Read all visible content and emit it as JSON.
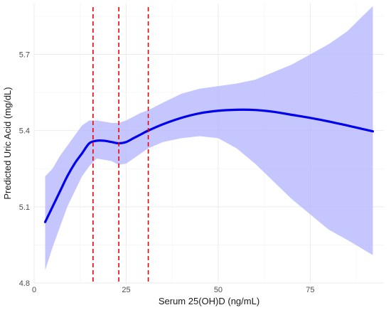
{
  "chart_data": {
    "type": "line",
    "title": "",
    "xlabel": "Serum 25(OH)D (ng/mL)",
    "ylabel": "Predicted Uric Acid (mg/dL)",
    "xlim": [
      0,
      95
    ],
    "ylim": [
      4.8,
      5.9
    ],
    "x_ticks": [
      0,
      25,
      50,
      75
    ],
    "x_tick_labels": [
      "0",
      "25",
      "50",
      "75"
    ],
    "y_ticks": [
      4.8,
      5.1,
      5.4,
      5.7
    ],
    "y_tick_labels": [
      "4.8",
      "5.1",
      "5.4",
      "5.7"
    ],
    "grid": true,
    "series": [
      {
        "type": "line",
        "color": "#0000ee",
        "x": [
          3,
          5,
          7,
          9,
          11,
          13,
          15,
          17,
          19,
          21,
          23,
          25,
          27,
          29,
          31,
          35,
          40,
          45,
          50,
          55,
          60,
          65,
          70,
          75,
          80,
          85,
          92
        ],
        "y": [
          5.04,
          5.1,
          5.16,
          5.22,
          5.27,
          5.31,
          5.35,
          5.36,
          5.36,
          5.355,
          5.35,
          5.355,
          5.37,
          5.385,
          5.4,
          5.425,
          5.45,
          5.468,
          5.478,
          5.482,
          5.481,
          5.474,
          5.462,
          5.45,
          5.436,
          5.42,
          5.397
        ]
      }
    ],
    "confidence_band": {
      "color": "#b3b3ff",
      "x": [
        3,
        5,
        7,
        9,
        11,
        13,
        15,
        17,
        19,
        21,
        23,
        25,
        27,
        29,
        31,
        35,
        40,
        45,
        50,
        55,
        60,
        65,
        70,
        75,
        80,
        85,
        92
      ],
      "lower": [
        4.85,
        4.94,
        5.02,
        5.1,
        5.16,
        5.22,
        5.26,
        5.29,
        5.285,
        5.28,
        5.265,
        5.27,
        5.29,
        5.31,
        5.33,
        5.355,
        5.37,
        5.378,
        5.37,
        5.33,
        5.27,
        5.2,
        5.13,
        5.07,
        5.01,
        4.97,
        4.91
      ],
      "upper": [
        5.22,
        5.25,
        5.3,
        5.34,
        5.38,
        5.42,
        5.44,
        5.44,
        5.435,
        5.43,
        5.43,
        5.44,
        5.455,
        5.47,
        5.48,
        5.51,
        5.545,
        5.565,
        5.575,
        5.585,
        5.6,
        5.63,
        5.66,
        5.7,
        5.74,
        5.79,
        5.89
      ]
    },
    "reference_lines": {
      "color": "#ee0000",
      "style": "dashed",
      "x": [
        16,
        23,
        31
      ]
    }
  }
}
